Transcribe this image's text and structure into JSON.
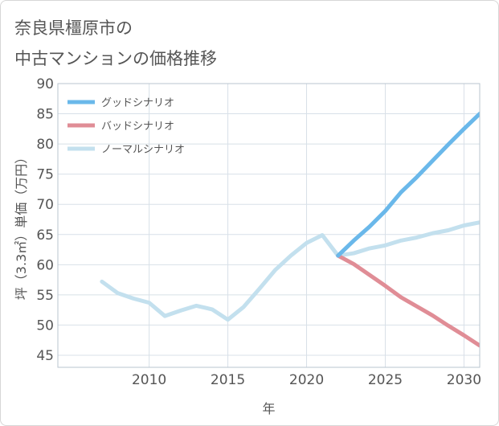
{
  "chart_data": {
    "type": "line",
    "title_lines": [
      "奈良県橿原市の",
      "中古マンションの価格推移"
    ],
    "xlabel": "年",
    "ylabel": "坪（3.3㎡）単価（万円）",
    "xlim": [
      2004.2,
      2031
    ],
    "ylim": [
      43,
      90
    ],
    "x_ticks": [
      2010,
      2015,
      2020,
      2025,
      2030
    ],
    "y_ticks": [
      45,
      50,
      55,
      60,
      65,
      70,
      75,
      80,
      85,
      90
    ],
    "grid": true,
    "legend_position": "top-left",
    "series": [
      {
        "name": "グッドシナリオ",
        "color": "#6ab8ea",
        "x": [
          2022,
          2023,
          2024,
          2025,
          2026,
          2027,
          2028,
          2029,
          2030,
          2031
        ],
        "values": [
          61.5,
          64.0,
          66.3,
          68.9,
          72.0,
          74.5,
          77.2,
          79.9,
          82.5,
          85.0
        ]
      },
      {
        "name": "バッドシナリオ",
        "color": "#e08d96",
        "x": [
          2022,
          2023,
          2024,
          2025,
          2026,
          2027,
          2028,
          2029,
          2030,
          2031
        ],
        "values": [
          61.5,
          60.1,
          58.3,
          56.5,
          54.6,
          53.1,
          51.6,
          49.9,
          48.3,
          46.6
        ]
      },
      {
        "name": "ノーマルシナリオ",
        "color": "#c3e0ee",
        "x": [
          2007,
          2008,
          2009,
          2010,
          2011,
          2012,
          2013,
          2014,
          2015,
          2016,
          2017,
          2018,
          2019,
          2020,
          2021,
          2022,
          2023,
          2024,
          2025,
          2026,
          2027,
          2028,
          2029,
          2030,
          2031
        ],
        "values": [
          57.2,
          55.3,
          54.4,
          53.7,
          51.5,
          52.4,
          53.2,
          52.6,
          50.9,
          53.0,
          56.0,
          59.1,
          61.5,
          63.6,
          64.9,
          61.5,
          61.9,
          62.7,
          63.2,
          64.0,
          64.5,
          65.2,
          65.7,
          66.5,
          67.0
        ]
      }
    ]
  }
}
